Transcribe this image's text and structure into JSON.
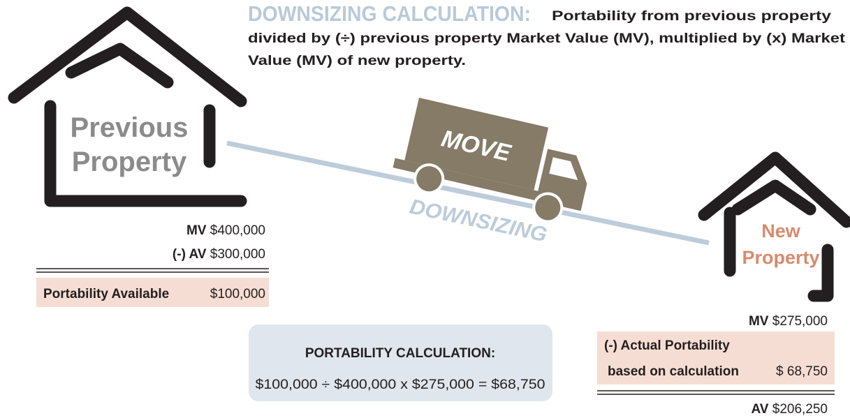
{
  "header": {
    "title": "DOWNSIZING CALCULATION:",
    "description": [
      "Portability from previous property",
      "divided by (÷) previous property Market Value (MV), multiplied by (x) Market",
      "Value (MV) of new property."
    ]
  },
  "previous_property": {
    "label": [
      "Previous",
      "Property"
    ],
    "rows": [
      {
        "label": "MV",
        "value": "$400,000"
      },
      {
        "label": "(-) AV",
        "value": "$300,000"
      }
    ],
    "result": {
      "label": "Portability Available",
      "value": "$100,000"
    }
  },
  "truck": {
    "label": "MOVE"
  },
  "slope_label": "DOWNSIZING",
  "calculation": {
    "title": "PORTABILITY CALCULATION:",
    "formula": "$100,000 ÷ $400,000 x $275,000 = $68,750"
  },
  "new_property": {
    "label": [
      "New",
      "Property"
    ],
    "market_value": {
      "label": "MV",
      "value": "$275,000"
    },
    "actual_portability": {
      "label": [
        "(-) Actual Portability",
        "based on calculation"
      ],
      "value": "$ 68,750"
    },
    "assessed_value": {
      "label": "AV",
      "value": "$206,250"
    }
  }
}
